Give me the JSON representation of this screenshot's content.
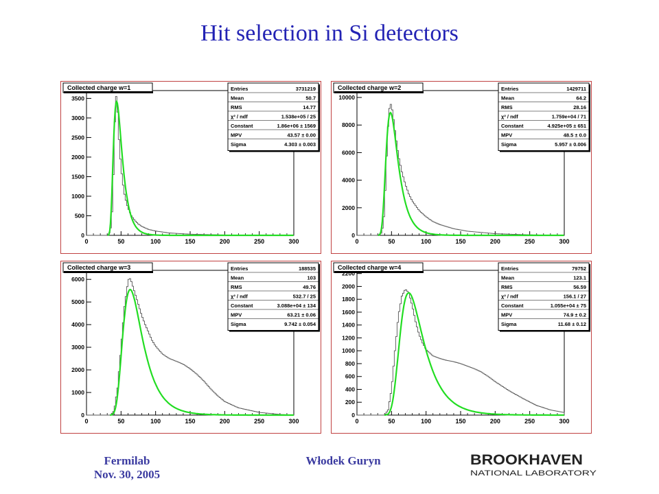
{
  "slide": {
    "title": "Hit selection in Si detectors",
    "footer_left_line1": "Fermilab",
    "footer_left_line2": "Nov. 30, 2005",
    "footer_center": "Włodek Guryn",
    "logo_top": "BROOKHAVEN",
    "logo_bottom": "NATIONAL LABORATORY",
    "colors": {
      "title": "#2323b4",
      "footer": "#3a3aa0",
      "fit": "#22dd22",
      "hist": "#555555",
      "frame": "#c04040"
    }
  },
  "chart_data": [
    {
      "type": "line",
      "title": "Collected charge w=1",
      "xlim": [
        0,
        300
      ],
      "ylim": [
        0,
        3700
      ],
      "xticks": [
        0,
        50,
        100,
        150,
        200,
        250,
        300
      ],
      "yticks": [
        0,
        500,
        1000,
        1500,
        2000,
        2500,
        3000,
        3500
      ],
      "yexponent": "10",
      "yexponent_power": "2",
      "stats": [
        {
          "label": "Entries",
          "value": "3731219"
        },
        {
          "label": "Mean",
          "value": "50.7"
        },
        {
          "label": "RMS",
          "value": "14.77"
        },
        {
          "label": "χ² / ndf",
          "value": "1.538e+05 / 25"
        },
        {
          "label": "Constant",
          "value": "1.86e+06 ± 1569"
        },
        {
          "label": "MPV",
          "value": "43.57 ± 0.00"
        },
        {
          "label": "Sigma",
          "value": "4.303 ± 0.003"
        }
      ],
      "fit": {
        "mpv": 43.57,
        "sigma": 4.303,
        "peak": 3420
      },
      "series": [
        {
          "x": [
            0,
            30,
            34,
            36,
            38,
            40,
            41,
            42,
            43,
            44,
            45,
            46,
            47,
            48,
            50,
            52,
            55,
            58,
            60,
            65,
            70,
            75,
            80,
            90,
            100,
            120,
            150,
            200,
            300
          ],
          "values": [
            0,
            0,
            80,
            300,
            900,
            2200,
            2900,
            3350,
            3550,
            3420,
            3150,
            2800,
            2450,
            2150,
            1750,
            1400,
            1050,
            820,
            700,
            500,
            380,
            290,
            230,
            150,
            110,
            60,
            30,
            10,
            0
          ]
        }
      ]
    },
    {
      "type": "line",
      "title": "Collected charge w=2",
      "xlim": [
        0,
        300
      ],
      "ylim": [
        0,
        10500
      ],
      "xticks": [
        0,
        50,
        100,
        150,
        200,
        250,
        300
      ],
      "yticks": [
        0,
        2000,
        4000,
        6000,
        8000,
        10000
      ],
      "yexponent": "10",
      "yexponent_power": "1",
      "stats": [
        {
          "label": "Entries",
          "value": "1429711"
        },
        {
          "label": "Mean",
          "value": "64.2"
        },
        {
          "label": "RMS",
          "value": "28.16"
        },
        {
          "label": "χ² / ndf",
          "value": "1.759e+04 / 71"
        },
        {
          "label": "Constant",
          "value": "4.925e+05 ± 651"
        },
        {
          "label": "MPV",
          "value": "48.5 ± 0.0"
        },
        {
          "label": "Sigma",
          "value": "5.957 ± 0.006"
        }
      ],
      "fit": {
        "mpv": 48.5,
        "sigma": 5.957,
        "peak": 8900
      },
      "series": [
        {
          "x": [
            0,
            30,
            35,
            38,
            40,
            42,
            44,
            46,
            48,
            50,
            52,
            54,
            56,
            58,
            60,
            65,
            70,
            75,
            80,
            90,
            100,
            110,
            120,
            140,
            160,
            200,
            250,
            300
          ],
          "values": [
            0,
            0,
            150,
            700,
            2000,
            4500,
            7000,
            8800,
            9600,
            9400,
            8800,
            8000,
            7200,
            6500,
            5800,
            4600,
            3700,
            3000,
            2500,
            1800,
            1350,
            1000,
            780,
            480,
            300,
            120,
            40,
            0
          ]
        }
      ]
    },
    {
      "type": "line",
      "title": "Collected charge w=3",
      "xlim": [
        0,
        300
      ],
      "ylim": [
        0,
        6400
      ],
      "xticks": [
        0,
        50,
        100,
        150,
        200,
        250,
        300
      ],
      "yticks": [
        0,
        1000,
        2000,
        3000,
        4000,
        5000,
        6000
      ],
      "yexponent": "",
      "yexponent_power": "",
      "stats": [
        {
          "label": "Entries",
          "value": "188535"
        },
        {
          "label": "Mean",
          "value": "103"
        },
        {
          "label": "RMS",
          "value": "49.76"
        },
        {
          "label": "χ² / ndf",
          "value": "532.7 / 25"
        },
        {
          "label": "Constant",
          "value": "3.088e+04 ± 134"
        },
        {
          "label": "MPV",
          "value": "63.21 ± 0.06"
        },
        {
          "label": "Sigma",
          "value": "9.742 ± 0.054"
        }
      ],
      "fit": {
        "mpv": 63.21,
        "sigma": 9.742,
        "peak": 5550
      },
      "series": [
        {
          "x": [
            0,
            35,
            40,
            45,
            50,
            55,
            60,
            62,
            65,
            70,
            75,
            80,
            85,
            90,
            95,
            100,
            110,
            120,
            130,
            140,
            150,
            160,
            170,
            180,
            190,
            200,
            220,
            250,
            280,
            300
          ],
          "values": [
            0,
            0,
            200,
            1200,
            3000,
            4800,
            5900,
            6100,
            5900,
            5400,
            4900,
            4400,
            4000,
            3650,
            3300,
            3050,
            2700,
            2500,
            2380,
            2250,
            2050,
            1800,
            1500,
            1150,
            850,
            600,
            320,
            120,
            30,
            0
          ]
        }
      ]
    },
    {
      "type": "line",
      "title": "Collected charge w=4",
      "xlim": [
        0,
        300
      ],
      "ylim": [
        0,
        2250
      ],
      "xticks": [
        0,
        50,
        100,
        150,
        200,
        250,
        300
      ],
      "yticks": [
        0,
        200,
        400,
        600,
        800,
        1000,
        1200,
        1400,
        1600,
        1800,
        2000,
        2200
      ],
      "yexponent": "",
      "yexponent_power": "",
      "stats": [
        {
          "label": "Entries",
          "value": "79752"
        },
        {
          "label": "Mean",
          "value": "123.1"
        },
        {
          "label": "RMS",
          "value": "56.59"
        },
        {
          "label": "χ² / ndf",
          "value": "156.1 / 27"
        },
        {
          "label": "Constant",
          "value": "1.055e+04 ± 75"
        },
        {
          "label": "MPV",
          "value": "74.9 ± 0.2"
        },
        {
          "label": "Sigma",
          "value": "11.68 ± 0.12"
        }
      ],
      "fit": {
        "mpv": 74.9,
        "sigma": 11.68,
        "peak": 1900
      },
      "series": [
        {
          "x": [
            0,
            40,
            45,
            50,
            55,
            60,
            65,
            70,
            75,
            80,
            85,
            90,
            95,
            100,
            110,
            120,
            130,
            140,
            150,
            160,
            170,
            180,
            190,
            200,
            220,
            240,
            260,
            280,
            300
          ],
          "values": [
            0,
            0,
            80,
            400,
            1000,
            1550,
            1850,
            1960,
            1900,
            1700,
            1450,
            1250,
            1120,
            1020,
            920,
            880,
            850,
            830,
            800,
            760,
            720,
            670,
            600,
            520,
            380,
            260,
            150,
            80,
            40
          ]
        }
      ]
    }
  ]
}
